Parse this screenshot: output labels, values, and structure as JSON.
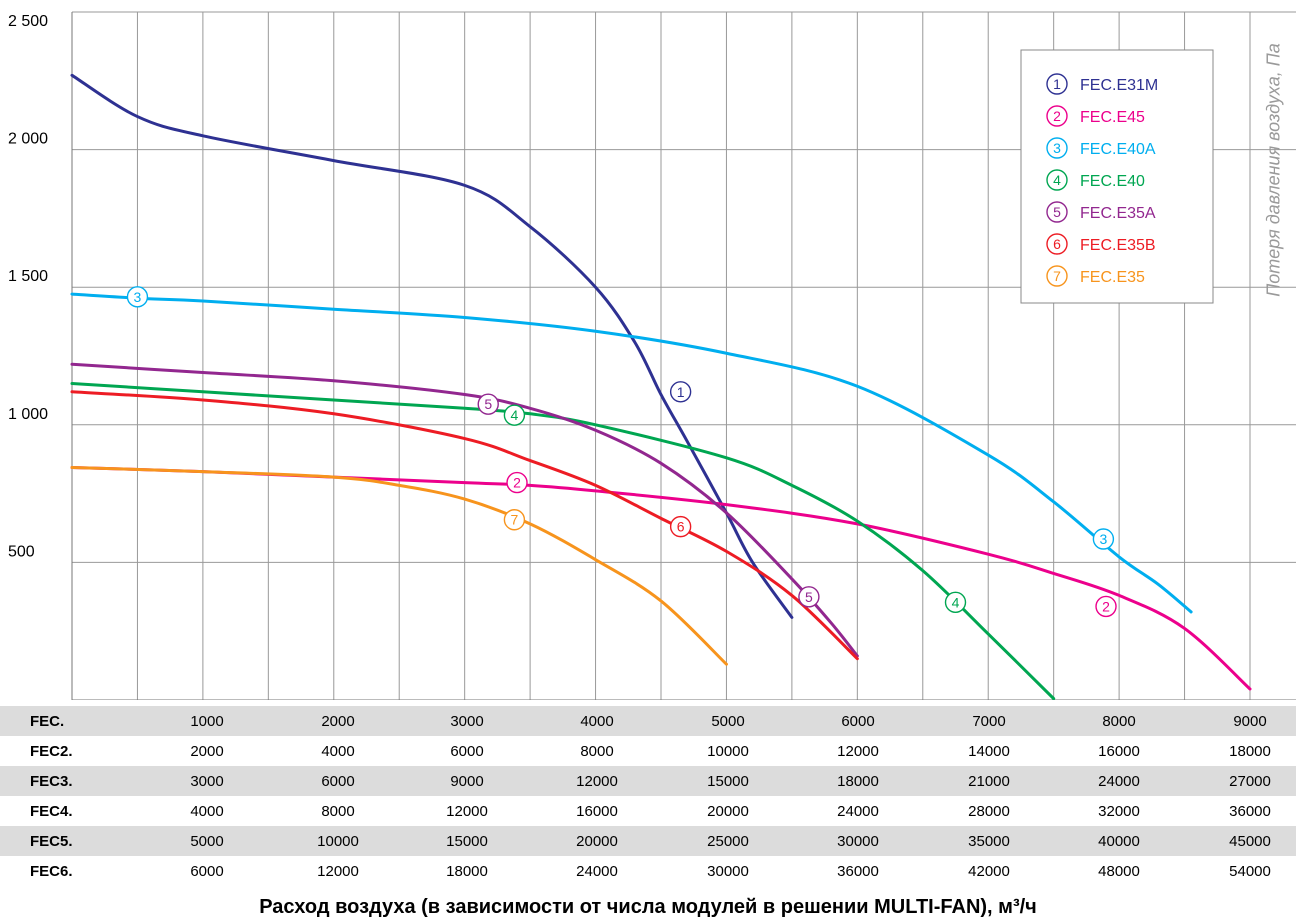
{
  "chart_data": {
    "type": "line",
    "ylabel": "Потеря давления воздуха, Па",
    "xlabel": "Расход воздуха (в зависимости от числа модулей в решении MULTI-FAN), м³/ч",
    "ylim": [
      0,
      2500
    ],
    "xlim": [
      0,
      9000
    ],
    "y_ticks": [
      500,
      1000,
      1500,
      2000,
      2500
    ],
    "y_tick_labels": [
      "500",
      "1 000",
      "1 500",
      "2 000",
      "2 500"
    ],
    "x_gridlines": [
      500,
      1000,
      1500,
      2000,
      2500,
      3000,
      3500,
      4000,
      4500,
      5000,
      5500,
      6000,
      6500,
      7000,
      7500,
      8000,
      8500,
      9000
    ],
    "grid": true,
    "legend_position": "top-right",
    "series": [
      {
        "name": "FEC.E31M",
        "marker": "1",
        "color": "#2e3192",
        "x": [
          0,
          500,
          1000,
          2000,
          3000,
          3500,
          4000,
          4300,
          4500,
          4700,
          5000,
          5200,
          5500
        ],
        "y": [
          2270,
          2120,
          2050,
          1960,
          1870,
          1720,
          1500,
          1300,
          1110,
          940,
          680,
          500,
          300
        ],
        "marker_at": [
          4650,
          1120
        ]
      },
      {
        "name": "FEC.E45",
        "marker": "2",
        "color": "#ec008c",
        "x": [
          0,
          1000,
          2000,
          3000,
          3500,
          4000,
          5000,
          6000,
          7000,
          7500,
          8000,
          8500,
          9000
        ],
        "y": [
          845,
          830,
          810,
          790,
          780,
          760,
          710,
          640,
          530,
          460,
          380,
          260,
          40
        ],
        "marker_at": [
          3400,
          790
        ],
        "marker2_at": [
          7900,
          340
        ]
      },
      {
        "name": "FEC.E40A",
        "marker": "3",
        "color": "#00aeef",
        "x": [
          0,
          500,
          1000,
          2000,
          3000,
          4000,
          5000,
          6000,
          7000,
          7500,
          8000,
          8300,
          8550
        ],
        "y": [
          1475,
          1460,
          1450,
          1420,
          1390,
          1340,
          1260,
          1140,
          890,
          720,
          520,
          420,
          320
        ],
        "marker_at": [
          500,
          1465
        ],
        "marker2_at": [
          7880,
          585
        ]
      },
      {
        "name": "FEC.E40",
        "marker": "4",
        "color": "#00a651",
        "x": [
          0,
          1000,
          2000,
          3000,
          3500,
          4000,
          5000,
          5500,
          6000,
          6500,
          7000,
          7500
        ],
        "y": [
          1150,
          1120,
          1090,
          1060,
          1040,
          1000,
          880,
          780,
          650,
          470,
          240,
          5
        ],
        "marker_at": [
          3380,
          1035
        ],
        "marker2_at": [
          6750,
          355
        ]
      },
      {
        "name": "FEC.E35A",
        "marker": "5",
        "color": "#92278f",
        "x": [
          0,
          1000,
          2000,
          3000,
          3500,
          4000,
          4500,
          5000,
          5500,
          5800,
          6000
        ],
        "y": [
          1220,
          1190,
          1160,
          1110,
          1060,
          980,
          860,
          680,
          440,
          280,
          160
        ],
        "marker_at": [
          3180,
          1075
        ],
        "marker2_at": [
          5630,
          375
        ]
      },
      {
        "name": "FEC.E35B",
        "marker": "6",
        "color": "#ed1c24",
        "x": [
          0,
          1000,
          2000,
          3000,
          3500,
          4000,
          4500,
          5000,
          5500,
          6000
        ],
        "y": [
          1120,
          1090,
          1040,
          950,
          870,
          780,
          660,
          540,
          380,
          150
        ],
        "marker_at": [
          4650,
          630
        ]
      },
      {
        "name": "FEC.E35",
        "marker": "7",
        "color": "#f7941d",
        "x": [
          0,
          1000,
          2000,
          2500,
          3000,
          3500,
          4000,
          4500,
          5000
        ],
        "y": [
          845,
          830,
          810,
          780,
          730,
          640,
          510,
          360,
          130
        ],
        "marker_at": [
          3380,
          655
        ]
      }
    ],
    "table": {
      "columns": [
        "1000",
        "2000",
        "3000",
        "4000",
        "5000",
        "6000",
        "7000",
        "8000",
        "9000"
      ],
      "rows": [
        {
          "label": "FEC.",
          "values": [
            "1000",
            "2000",
            "3000",
            "4000",
            "5000",
            "6000",
            "7000",
            "8000",
            "9000"
          ]
        },
        {
          "label": "FEC2.",
          "values": [
            "2000",
            "4000",
            "6000",
            "8000",
            "10000",
            "12000",
            "14000",
            "16000",
            "18000"
          ]
        },
        {
          "label": "FEC3.",
          "values": [
            "3000",
            "6000",
            "9000",
            "12000",
            "15000",
            "18000",
            "21000",
            "24000",
            "27000"
          ]
        },
        {
          "label": "FEC4.",
          "values": [
            "4000",
            "8000",
            "12000",
            "16000",
            "20000",
            "24000",
            "28000",
            "32000",
            "36000"
          ]
        },
        {
          "label": "FEC5.",
          "values": [
            "5000",
            "10000",
            "15000",
            "20000",
            "25000",
            "30000",
            "35000",
            "40000",
            "45000"
          ]
        },
        {
          "label": "FEC6.",
          "values": [
            "6000",
            "12000",
            "18000",
            "24000",
            "30000",
            "36000",
            "42000",
            "48000",
            "54000"
          ]
        }
      ]
    }
  }
}
